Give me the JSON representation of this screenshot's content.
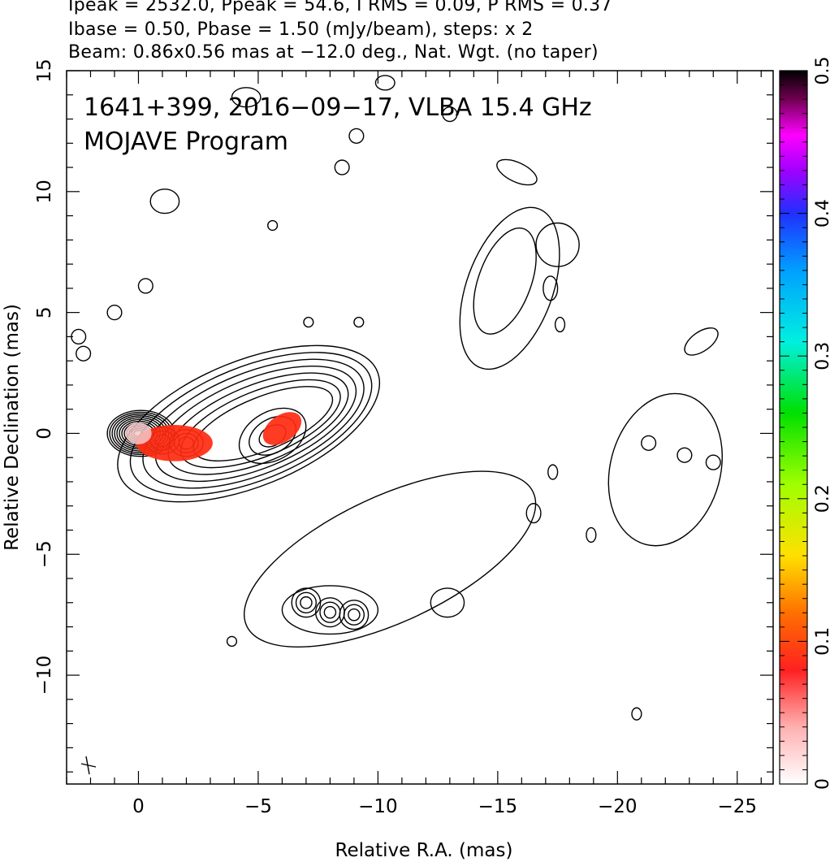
{
  "header": {
    "line1": "Ipeak = 2532.0, Ppeak = 54.6, I RMS = 0.09, P RMS = 0.37",
    "line2": "Ibase = 0.50, Pbase = 1.50 (mJy/beam), steps: x 2",
    "line3": "Beam: 0.86x0.56 mas at −12.0 deg., Nat. Wgt. (no taper)"
  },
  "chart_data": {
    "type": "contour",
    "title": "1641+399, 2016−09−17, VLBA 15.4 GHz",
    "subtitle": "MOJAVE Program",
    "xlabel": "Relative R.A. (mas)",
    "ylabel": "Relative Declination (mas)",
    "xlim": [
      3,
      -26.5
    ],
    "ylim": [
      -14.5,
      15
    ],
    "xticks": [
      0,
      -5,
      -10,
      -15,
      -20,
      -25
    ],
    "xtick_labels": [
      "0",
      "−5",
      "−10",
      "−15",
      "−20",
      "−25"
    ],
    "yticks": [
      -10,
      -5,
      0,
      5,
      10,
      15
    ],
    "ytick_labels": [
      "−10",
      "−5",
      "0",
      "5",
      "10",
      "15"
    ],
    "colorbar": {
      "range": [
        0,
        0.5
      ],
      "ticks": [
        0,
        0.1,
        0.2,
        0.3,
        0.4,
        0.5
      ],
      "tick_labels": [
        "0",
        "0.1",
        "0.2",
        "0.3",
        "0.4",
        "0.5"
      ]
    },
    "contour_base_mJy_per_beam": 0.5,
    "contour_step_factor": 2,
    "core_position": [
      0,
      0
    ],
    "beam": {
      "major_mas": 0.86,
      "minor_mas": 0.56,
      "pa_deg": -12.0
    },
    "components": [
      {
        "x": 0.0,
        "y": 0.0,
        "peak_level": 1.0
      },
      {
        "x": -1.0,
        "y": -0.3,
        "peak_level": 0.6
      },
      {
        "x": -2.0,
        "y": -0.4,
        "peak_level": 0.6
      },
      {
        "x": -5.6,
        "y": -0.1,
        "peak_level": 0.4
      },
      {
        "x": -7.0,
        "y": -7.0,
        "peak_level": 0.3
      },
      {
        "x": -8.0,
        "y": -7.4,
        "peak_level": 0.3
      },
      {
        "x": -9.0,
        "y": -7.5,
        "peak_level": 0.3
      }
    ],
    "polarized_regions": [
      {
        "x": -1.5,
        "y": -0.4
      },
      {
        "x": -6.0,
        "y": 0.2
      }
    ]
  }
}
